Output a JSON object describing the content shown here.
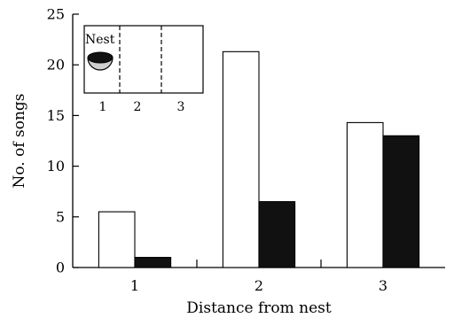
{
  "chart_data": {
    "type": "bar",
    "categories": [
      "1",
      "2",
      "3"
    ],
    "series": [
      {
        "values": [
          5.5,
          21.3,
          14.3
        ],
        "color": "#ffffff"
      },
      {
        "values": [
          1.0,
          6.5,
          13.0
        ],
        "color": "#111111"
      }
    ],
    "xlabel": "Distance from nest",
    "ylabel": "No. of songs",
    "ylim": [
      0,
      25
    ],
    "yticks": [
      0,
      5,
      10,
      15,
      20,
      25
    ],
    "grid": false,
    "inset": {
      "label": "Nest",
      "zones": [
        "1",
        "2",
        "3"
      ],
      "icon": "nest-icon"
    }
  }
}
